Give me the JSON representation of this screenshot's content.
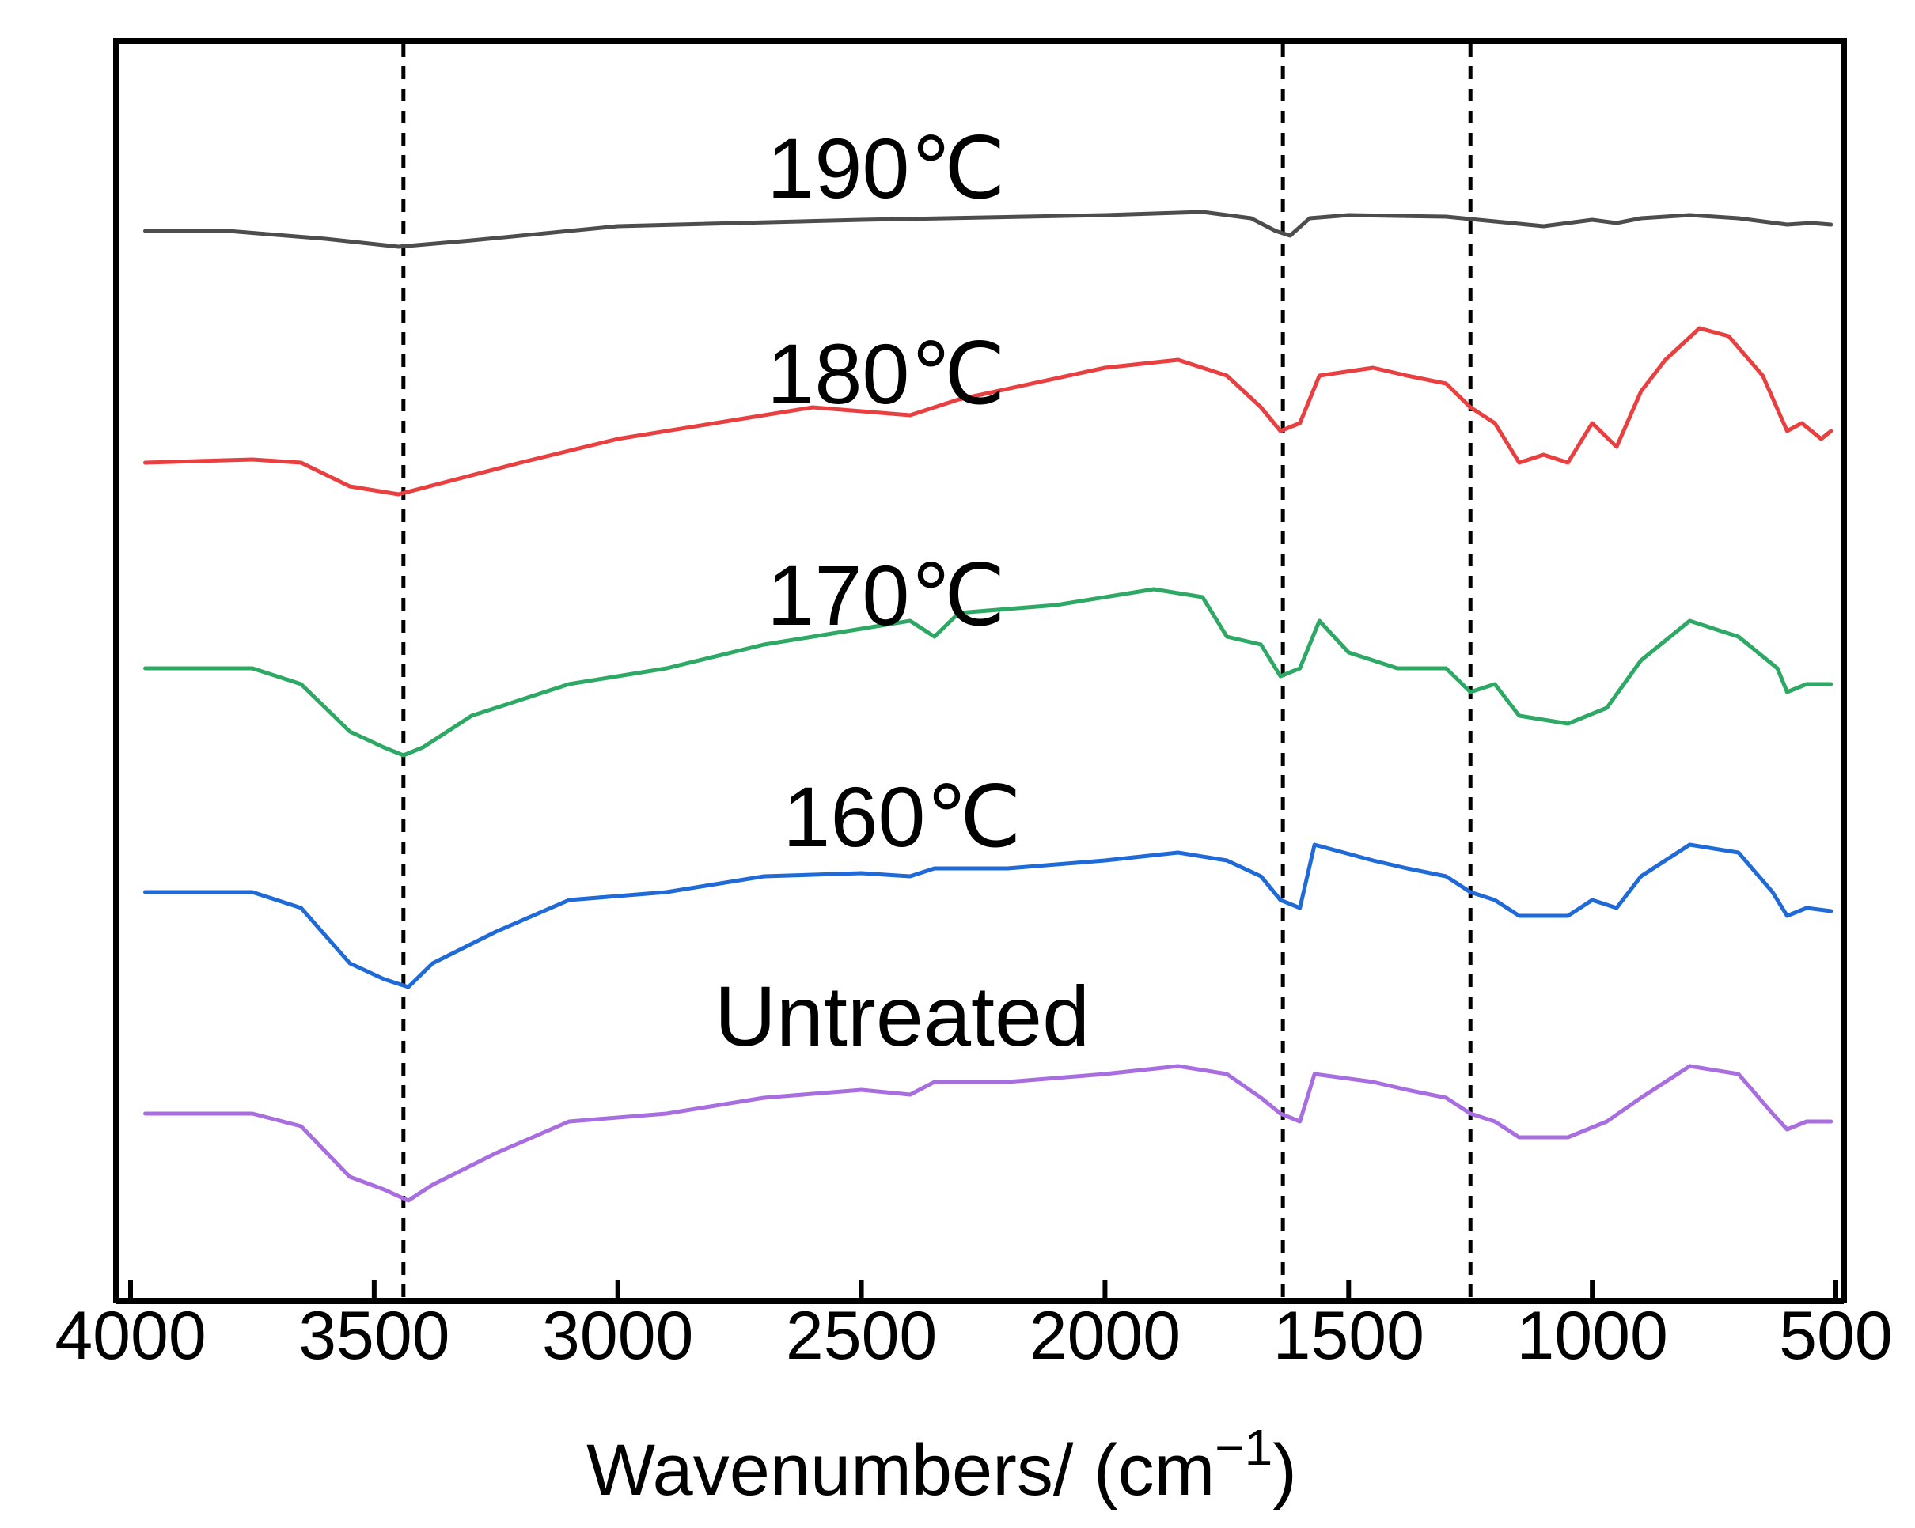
{
  "chart_data": {
    "type": "line",
    "title": "",
    "xlabel": "Wavenumbers/ (cm",
    "xlabel_superscript": "−1",
    "xlabel_suffix": ")",
    "ylabel": "",
    "xlim": [
      4000,
      500
    ],
    "x_reversed": true,
    "x_ticks": [
      4000,
      3500,
      3000,
      2500,
      2000,
      1500,
      1000,
      500
    ],
    "y_axis": "offset-stacked, no ticks",
    "grid": false,
    "reference_lines": [
      3440,
      1635,
      1250
    ],
    "series": [
      {
        "name": "190℃",
        "color": "#4d4d4d",
        "points": [
          [
            3970,
            0.0
          ],
          [
            3800,
            0.0
          ],
          [
            3600,
            -0.05
          ],
          [
            3450,
            -0.1
          ],
          [
            3300,
            -0.06
          ],
          [
            3000,
            0.03
          ],
          [
            2500,
            0.07
          ],
          [
            2000,
            0.1
          ],
          [
            1800,
            0.12
          ],
          [
            1700,
            0.08
          ],
          [
            1650,
            0.0
          ],
          [
            1620,
            -0.03
          ],
          [
            1580,
            0.08
          ],
          [
            1500,
            0.1
          ],
          [
            1300,
            0.09
          ],
          [
            1200,
            0.06
          ],
          [
            1100,
            0.03
          ],
          [
            1000,
            0.07
          ],
          [
            950,
            0.05
          ],
          [
            900,
            0.08
          ],
          [
            800,
            0.1
          ],
          [
            700,
            0.08
          ],
          [
            600,
            0.04
          ],
          [
            550,
            0.05
          ],
          [
            510,
            0.04
          ]
        ]
      },
      {
        "name": "180℃",
        "color": "#e84040",
        "points": [
          [
            3970,
            0.0
          ],
          [
            3750,
            0.02
          ],
          [
            3650,
            0.0
          ],
          [
            3550,
            -0.15
          ],
          [
            3450,
            -0.2
          ],
          [
            3350,
            -0.12
          ],
          [
            3200,
            0.0
          ],
          [
            3000,
            0.15
          ],
          [
            2800,
            0.25
          ],
          [
            2600,
            0.35
          ],
          [
            2400,
            0.3
          ],
          [
            2300,
            0.4
          ],
          [
            2000,
            0.6
          ],
          [
            1850,
            0.65
          ],
          [
            1750,
            0.55
          ],
          [
            1680,
            0.35
          ],
          [
            1640,
            0.2
          ],
          [
            1600,
            0.25
          ],
          [
            1560,
            0.55
          ],
          [
            1450,
            0.6
          ],
          [
            1380,
            0.55
          ],
          [
            1300,
            0.5
          ],
          [
            1250,
            0.35
          ],
          [
            1200,
            0.25
          ],
          [
            1150,
            0.0
          ],
          [
            1100,
            0.05
          ],
          [
            1050,
            0.0
          ],
          [
            1000,
            0.25
          ],
          [
            950,
            0.1
          ],
          [
            900,
            0.45
          ],
          [
            850,
            0.65
          ],
          [
            780,
            0.85
          ],
          [
            720,
            0.8
          ],
          [
            650,
            0.55
          ],
          [
            600,
            0.2
          ],
          [
            570,
            0.25
          ],
          [
            530,
            0.15
          ],
          [
            510,
            0.2
          ]
        ]
      },
      {
        "name": "170℃",
        "color": "#2ea865",
        "points": [
          [
            3970,
            0.0
          ],
          [
            3750,
            0.0
          ],
          [
            3650,
            -0.1
          ],
          [
            3550,
            -0.4
          ],
          [
            3480,
            -0.5
          ],
          [
            3440,
            -0.55
          ],
          [
            3400,
            -0.5
          ],
          [
            3300,
            -0.3
          ],
          [
            3100,
            -0.1
          ],
          [
            2900,
            0.0
          ],
          [
            2700,
            0.15
          ],
          [
            2500,
            0.25
          ],
          [
            2400,
            0.3
          ],
          [
            2350,
            0.2
          ],
          [
            2300,
            0.35
          ],
          [
            2100,
            0.4
          ],
          [
            1900,
            0.5
          ],
          [
            1800,
            0.45
          ],
          [
            1750,
            0.2
          ],
          [
            1680,
            0.15
          ],
          [
            1640,
            -0.05
          ],
          [
            1600,
            0.0
          ],
          [
            1560,
            0.3
          ],
          [
            1500,
            0.1
          ],
          [
            1400,
            0.0
          ],
          [
            1300,
            0.0
          ],
          [
            1250,
            -0.15
          ],
          [
            1200,
            -0.1
          ],
          [
            1150,
            -0.3
          ],
          [
            1050,
            -0.35
          ],
          [
            970,
            -0.25
          ],
          [
            900,
            0.05
          ],
          [
            800,
            0.3
          ],
          [
            700,
            0.2
          ],
          [
            620,
            0.0
          ],
          [
            600,
            -0.15
          ],
          [
            560,
            -0.1
          ],
          [
            510,
            -0.1
          ]
        ]
      },
      {
        "name": "160℃",
        "color": "#1f6ad6",
        "points": [
          [
            3970,
            0.0
          ],
          [
            3750,
            0.0
          ],
          [
            3650,
            -0.1
          ],
          [
            3550,
            -0.45
          ],
          [
            3480,
            -0.55
          ],
          [
            3430,
            -0.6
          ],
          [
            3380,
            -0.45
          ],
          [
            3250,
            -0.25
          ],
          [
            3100,
            -0.05
          ],
          [
            2900,
            0.0
          ],
          [
            2700,
            0.1
          ],
          [
            2500,
            0.12
          ],
          [
            2400,
            0.1
          ],
          [
            2350,
            0.15
          ],
          [
            2200,
            0.15
          ],
          [
            2000,
            0.2
          ],
          [
            1850,
            0.25
          ],
          [
            1750,
            0.2
          ],
          [
            1680,
            0.1
          ],
          [
            1640,
            -0.05
          ],
          [
            1600,
            -0.1
          ],
          [
            1570,
            0.3
          ],
          [
            1450,
            0.2
          ],
          [
            1380,
            0.15
          ],
          [
            1300,
            0.1
          ],
          [
            1250,
            0.0
          ],
          [
            1200,
            -0.05
          ],
          [
            1150,
            -0.15
          ],
          [
            1050,
            -0.15
          ],
          [
            1000,
            -0.05
          ],
          [
            950,
            -0.1
          ],
          [
            900,
            0.1
          ],
          [
            800,
            0.3
          ],
          [
            700,
            0.25
          ],
          [
            630,
            0.0
          ],
          [
            600,
            -0.15
          ],
          [
            560,
            -0.1
          ],
          [
            510,
            -0.12
          ]
        ]
      },
      {
        "name": "Untreated",
        "color": "#a86ee0",
        "points": [
          [
            3970,
            0.0
          ],
          [
            3750,
            0.0
          ],
          [
            3650,
            -0.08
          ],
          [
            3550,
            -0.4
          ],
          [
            3480,
            -0.48
          ],
          [
            3430,
            -0.55
          ],
          [
            3380,
            -0.45
          ],
          [
            3250,
            -0.25
          ],
          [
            3100,
            -0.05
          ],
          [
            2900,
            0.0
          ],
          [
            2700,
            0.1
          ],
          [
            2500,
            0.15
          ],
          [
            2400,
            0.12
          ],
          [
            2350,
            0.2
          ],
          [
            2200,
            0.2
          ],
          [
            2000,
            0.25
          ],
          [
            1850,
            0.3
          ],
          [
            1750,
            0.25
          ],
          [
            1680,
            0.1
          ],
          [
            1640,
            0.0
          ],
          [
            1600,
            -0.05
          ],
          [
            1570,
            0.25
          ],
          [
            1450,
            0.2
          ],
          [
            1380,
            0.15
          ],
          [
            1300,
            0.1
          ],
          [
            1250,
            0.0
          ],
          [
            1200,
            -0.05
          ],
          [
            1150,
            -0.15
          ],
          [
            1050,
            -0.15
          ],
          [
            970,
            -0.05
          ],
          [
            900,
            0.1
          ],
          [
            800,
            0.3
          ],
          [
            700,
            0.25
          ],
          [
            630,
            0.0
          ],
          [
            600,
            -0.1
          ],
          [
            560,
            -0.05
          ],
          [
            510,
            -0.05
          ]
        ]
      }
    ]
  }
}
